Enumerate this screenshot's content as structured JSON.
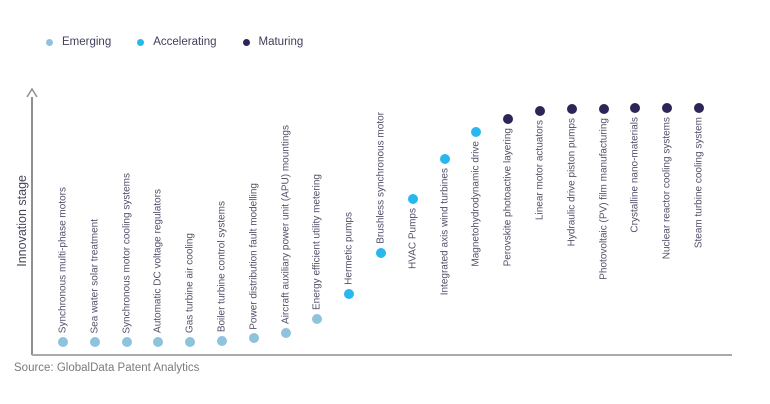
{
  "legend": {
    "items": [
      {
        "label": "Emerging",
        "color": "#8fc2dd"
      },
      {
        "label": "Accelerating",
        "color": "#29b7ef"
      },
      {
        "label": "Maturing",
        "color": "#2f2457"
      }
    ]
  },
  "chart_data": {
    "type": "scatter",
    "title": "",
    "xlabel": "",
    "ylabel": "Innovation stage",
    "ylim": [
      0,
      100
    ],
    "grid": false,
    "legend_position": "top-left",
    "x_labels_rotated_vertical": true,
    "stage_colors": {
      "Emerging": "#8fc2dd",
      "Accelerating": "#29b7ef",
      "Maturing": "#2f2457"
    },
    "points": [
      {
        "label": "Synchronous multi-phase motors",
        "stage": "Emerging",
        "value": 5
      },
      {
        "label": "Sea water solar treatment",
        "stage": "Emerging",
        "value": 5
      },
      {
        "label": "Synchronous motor cooling systems",
        "stage": "Emerging",
        "value": 5
      },
      {
        "label": "Automatic DC voltage regulators",
        "stage": "Emerging",
        "value": 5
      },
      {
        "label": "Gas turbine air cooling",
        "stage": "Emerging",
        "value": 5
      },
      {
        "label": "Boiler turbine control systems",
        "stage": "Emerging",
        "value": 5.5
      },
      {
        "label": "Power distribution fault modelling",
        "stage": "Emerging",
        "value": 6.5
      },
      {
        "label": "Aircraft auxiliary power unit (APU) mountings",
        "stage": "Emerging",
        "value": 8.5
      },
      {
        "label": "Energy efficient utility metering",
        "stage": "Emerging",
        "value": 14
      },
      {
        "label": "Hermetic pumps",
        "stage": "Accelerating",
        "value": 24
      },
      {
        "label": "Brushless synchronous motor",
        "stage": "Accelerating",
        "value": 40
      },
      {
        "label": "HVAC Pumps",
        "stage": "Accelerating",
        "value": 61
      },
      {
        "label": "Integrated axis wind turbines",
        "stage": "Accelerating",
        "value": 77
      },
      {
        "label": "Magnetohydrodynamic drive",
        "stage": "Accelerating",
        "value": 87.5
      },
      {
        "label": "Perovskite photoactive layering",
        "stage": "Maturing",
        "value": 92.5
      },
      {
        "label": "Linear motor actuators",
        "stage": "Maturing",
        "value": 95.5
      },
      {
        "label": "Hydraulic drive piston pumps",
        "stage": "Maturing",
        "value": 96.5
      },
      {
        "label": "Photovoltaic (PV) film manufacturing",
        "stage": "Maturing",
        "value": 96.5
      },
      {
        "label": "Crystalline nano-materials",
        "stage": "Maturing",
        "value": 97
      },
      {
        "label": "Nuclear reactor cooling systems",
        "stage": "Maturing",
        "value": 97
      },
      {
        "label": "Steam turbine cooling system",
        "stage": "Maturing",
        "value": 97
      }
    ]
  },
  "source": "Source: GlobalData Patent Analytics"
}
